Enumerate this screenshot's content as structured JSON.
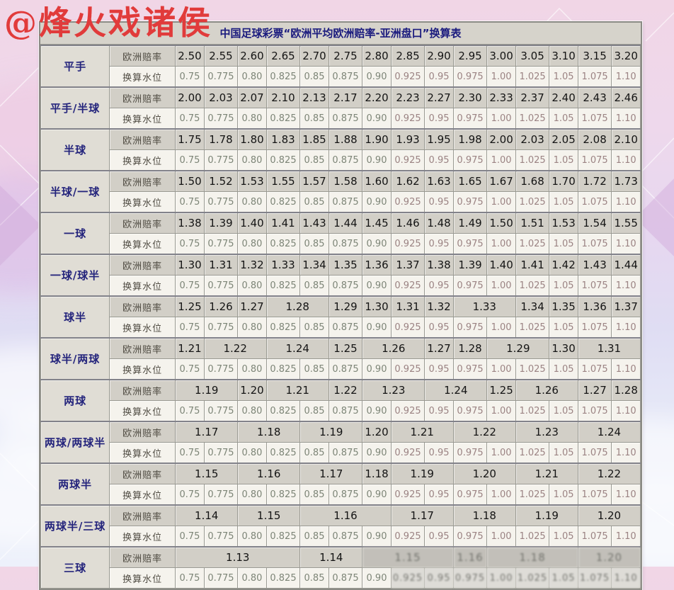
{
  "watermark": "@烽火戏诸侯",
  "table": {
    "title": "中国足球彩票“欧洲平均欧洲赔率-亚洲盘口”换算表",
    "odds_label": "欧洲赔率",
    "water_label": "换算水位",
    "water_levels": [
      "0.75",
      "0.775",
      "0.80",
      "0.825",
      "0.85",
      "0.875",
      "0.90",
      "0.925",
      "0.95",
      "0.975",
      "1.00",
      "1.025",
      "1.05",
      "1.075",
      "1.10"
    ],
    "bands": [
      {
        "handicap": "平手",
        "odds": [
          {
            "v": "2.50"
          },
          {
            "v": "2.55"
          },
          {
            "v": "2.60"
          },
          {
            "v": "2.65"
          },
          {
            "v": "2.70"
          },
          {
            "v": "2.75"
          },
          {
            "v": "2.80"
          },
          {
            "v": "2.85"
          },
          {
            "v": "2.90"
          },
          {
            "v": "2.95"
          },
          {
            "v": "3.00"
          },
          {
            "v": "3.05"
          },
          {
            "v": "3.10"
          },
          {
            "v": "3.15"
          },
          {
            "v": "3.20"
          }
        ]
      },
      {
        "handicap": "平手/半球",
        "odds": [
          {
            "v": "2.00"
          },
          {
            "v": "2.03"
          },
          {
            "v": "2.07"
          },
          {
            "v": "2.10"
          },
          {
            "v": "2.13"
          },
          {
            "v": "2.17"
          },
          {
            "v": "2.20"
          },
          {
            "v": "2.23"
          },
          {
            "v": "2.27"
          },
          {
            "v": "2.30"
          },
          {
            "v": "2.33"
          },
          {
            "v": "2.37"
          },
          {
            "v": "2.40"
          },
          {
            "v": "2.43"
          },
          {
            "v": "2.46"
          }
        ]
      },
      {
        "handicap": "半球",
        "odds": [
          {
            "v": "1.75"
          },
          {
            "v": "1.78"
          },
          {
            "v": "1.80"
          },
          {
            "v": "1.83"
          },
          {
            "v": "1.85"
          },
          {
            "v": "1.88"
          },
          {
            "v": "1.90"
          },
          {
            "v": "1.93"
          },
          {
            "v": "1.95"
          },
          {
            "v": "1.98"
          },
          {
            "v": "2.00"
          },
          {
            "v": "2.03"
          },
          {
            "v": "2.05"
          },
          {
            "v": "2.08"
          },
          {
            "v": "2.10"
          }
        ]
      },
      {
        "handicap": "半球/一球",
        "odds": [
          {
            "v": "1.50"
          },
          {
            "v": "1.52"
          },
          {
            "v": "1.53"
          },
          {
            "v": "1.55"
          },
          {
            "v": "1.57"
          },
          {
            "v": "1.58"
          },
          {
            "v": "1.60"
          },
          {
            "v": "1.62"
          },
          {
            "v": "1.63"
          },
          {
            "v": "1.65"
          },
          {
            "v": "1.67"
          },
          {
            "v": "1.68"
          },
          {
            "v": "1.70"
          },
          {
            "v": "1.72"
          },
          {
            "v": "1.73"
          }
        ]
      },
      {
        "handicap": "一球",
        "odds": [
          {
            "v": "1.38"
          },
          {
            "v": "1.39"
          },
          {
            "v": "1.40"
          },
          {
            "v": "1.41"
          },
          {
            "v": "1.43"
          },
          {
            "v": "1.44"
          },
          {
            "v": "1.45"
          },
          {
            "v": "1.46"
          },
          {
            "v": "1.48"
          },
          {
            "v": "1.49"
          },
          {
            "v": "1.50"
          },
          {
            "v": "1.51"
          },
          {
            "v": "1.53"
          },
          {
            "v": "1.54"
          },
          {
            "v": "1.55"
          }
        ]
      },
      {
        "handicap": "一球/球半",
        "odds": [
          {
            "v": "1.30"
          },
          {
            "v": "1.31"
          },
          {
            "v": "1.32"
          },
          {
            "v": "1.33"
          },
          {
            "v": "1.34"
          },
          {
            "v": "1.35"
          },
          {
            "v": "1.36"
          },
          {
            "v": "1.37"
          },
          {
            "v": "1.38"
          },
          {
            "v": "1.39"
          },
          {
            "v": "1.40"
          },
          {
            "v": "1.41"
          },
          {
            "v": "1.42"
          },
          {
            "v": "1.43"
          },
          {
            "v": "1.44"
          }
        ]
      },
      {
        "handicap": "球半",
        "odds": [
          {
            "v": "1.25"
          },
          {
            "v": "1.26"
          },
          {
            "v": "1.27"
          },
          {
            "v": "1.28",
            "s": 2
          },
          {
            "v": "1.29"
          },
          {
            "v": "1.30"
          },
          {
            "v": "1.31"
          },
          {
            "v": "1.32"
          },
          {
            "v": "1.33",
            "s": 2
          },
          {
            "v": "1.34"
          },
          {
            "v": "1.35"
          },
          {
            "v": "1.36"
          },
          {
            "v": "1.37"
          }
        ]
      },
      {
        "handicap": "球半/两球",
        "odds": [
          {
            "v": "1.21"
          },
          {
            "v": "1.22",
            "s": 2
          },
          {
            "v": "1.24",
            "s": 2
          },
          {
            "v": "1.25"
          },
          {
            "v": "1.26",
            "s": 2
          },
          {
            "v": "1.27"
          },
          {
            "v": "1.28"
          },
          {
            "v": "1.29",
            "s": 2
          },
          {
            "v": "1.30"
          },
          {
            "v": "1.31",
            "s": 2
          }
        ]
      },
      {
        "handicap": "两球",
        "odds": [
          {
            "v": "1.19",
            "s": 2
          },
          {
            "v": "1.20"
          },
          {
            "v": "1.21",
            "s": 2
          },
          {
            "v": "1.22"
          },
          {
            "v": "1.23",
            "s": 2
          },
          {
            "v": "1.24",
            "s": 2
          },
          {
            "v": "1.25"
          },
          {
            "v": "1.26",
            "s": 2
          },
          {
            "v": "1.27"
          },
          {
            "v": "1.28"
          }
        ]
      },
      {
        "handicap": "两球/两球半",
        "odds": [
          {
            "v": "1.17",
            "s": 2
          },
          {
            "v": "1.18",
            "s": 2
          },
          {
            "v": "1.19",
            "s": 2
          },
          {
            "v": "1.20"
          },
          {
            "v": "1.21",
            "s": 2
          },
          {
            "v": "1.22",
            "s": 2
          },
          {
            "v": "1.23",
            "s": 2
          },
          {
            "v": "1.24",
            "s": 2
          }
        ]
      },
      {
        "handicap": "两球半",
        "odds": [
          {
            "v": "1.15",
            "s": 2
          },
          {
            "v": "1.16",
            "s": 2
          },
          {
            "v": "1.17",
            "s": 2
          },
          {
            "v": "1.18"
          },
          {
            "v": "1.19",
            "s": 2
          },
          {
            "v": "1.20",
            "s": 2
          },
          {
            "v": "1.21",
            "s": 2
          },
          {
            "v": "1.22",
            "s": 2
          }
        ]
      },
      {
        "handicap": "两球半/三球",
        "odds": [
          {
            "v": "1.14",
            "s": 2
          },
          {
            "v": "1.15",
            "s": 2
          },
          {
            "v": "1.16",
            "s": 3
          },
          {
            "v": "1.17",
            "s": 2
          },
          {
            "v": "1.18",
            "s": 2
          },
          {
            "v": "1.19",
            "s": 2
          },
          {
            "v": "1.20",
            "s": 2
          }
        ]
      },
      {
        "handicap": "三球",
        "water_garbled_from": 7,
        "odds": [
          {
            "v": "1.13",
            "s": 4
          },
          {
            "v": "1.14",
            "s": 2
          },
          {
            "v": "1.15",
            "s": 3,
            "g": true
          },
          {
            "v": "1.16",
            "s": 1,
            "g": true
          },
          {
            "v": "1.18",
            "s": 3,
            "g": true
          },
          {
            "v": "1.20",
            "s": 2,
            "g": true
          }
        ]
      }
    ]
  },
  "colors": {
    "title_text": "#1b1b7e",
    "handicap_text": "#24247c",
    "odds_cell_bg": "#d2cfc7",
    "water_cell_bg": "#f5f3ed",
    "water_text_left": "#7d8577",
    "water_text_right": "#9b8383",
    "watermark_red": "#e13b3b",
    "background_pink": "#f1d6e6",
    "background_blue": "#edf1fb"
  }
}
